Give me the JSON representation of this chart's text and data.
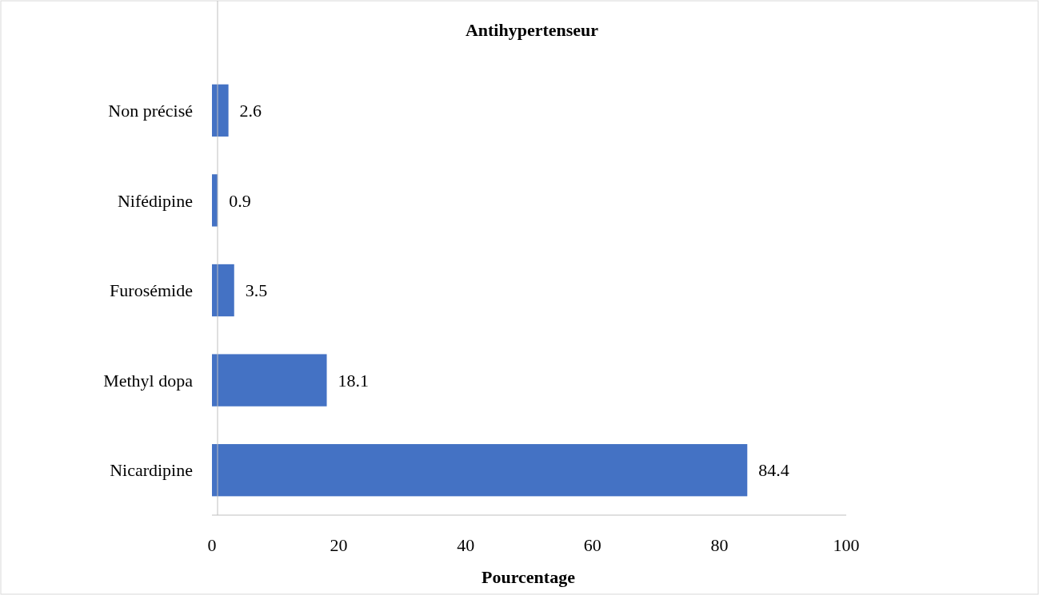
{
  "chart_data": {
    "type": "bar",
    "orientation": "horizontal",
    "title": "Antihypertenseur",
    "xlabel": "Pourcentage",
    "categories": [
      "Non précisé",
      "Nifédipine",
      "Furosémide",
      "Methyl dopa",
      "Nicardipine"
    ],
    "values": [
      2.6,
      0.9,
      3.5,
      18.1,
      84.4
    ],
    "color": "#4472c4",
    "xlim": [
      0,
      100
    ],
    "xticks": [
      0,
      20,
      40,
      60,
      80,
      100
    ],
    "data_labels": true,
    "grid": false
  }
}
